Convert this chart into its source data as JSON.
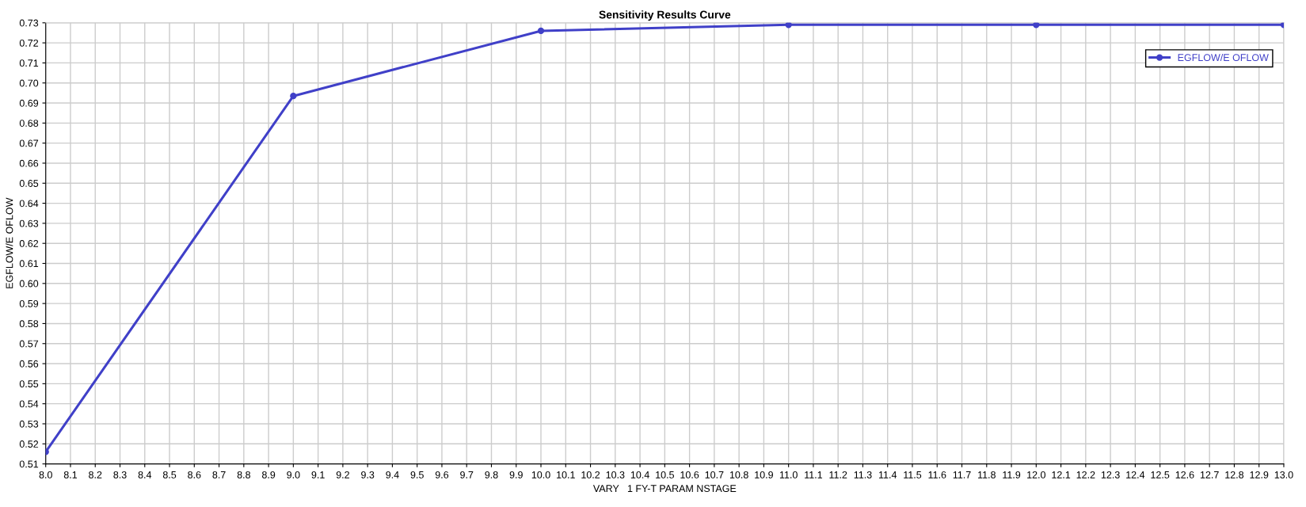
{
  "chart_data": {
    "type": "line",
    "title": "Sensitivity Results Curve",
    "xlabel": "VARY   1 FY-T PARAM NSTAGE",
    "ylabel": "EGFLOW/E OFLOW",
    "x": [
      8.0,
      9.0,
      10.0,
      11.0,
      12.0,
      13.0
    ],
    "series": [
      {
        "name": "EGFLOW/E OFLOW",
        "color": "#4040c8",
        "values": [
          0.516,
          0.6935,
          0.726,
          0.729,
          0.729,
          0.729
        ]
      }
    ],
    "xlim": [
      8.0,
      13.0
    ],
    "xticks": [
      {
        "value": 8,
        "label": "8.0"
      },
      8.1,
      8.2,
      8.3,
      8.4,
      8.5,
      8.6,
      8.7,
      8.8,
      8.9,
      {
        "value": 9,
        "label": "9.0"
      },
      9.1,
      9.2,
      9.3,
      9.4,
      9.5,
      9.6,
      9.7,
      9.8,
      9.9,
      {
        "value": 10,
        "label": "10.0"
      },
      10.1,
      10.2,
      10.3,
      10.4,
      10.5,
      10.6,
      10.7,
      10.8,
      10.9,
      {
        "value": 11,
        "label": "11.0"
      },
      11.1,
      11.2,
      11.3,
      11.4,
      11.5,
      11.6,
      11.7,
      11.8,
      11.9,
      {
        "value": 12,
        "label": "12.0"
      },
      12.1,
      12.2,
      12.3,
      12.4,
      12.5,
      12.6,
      12.7,
      12.8,
      12.9,
      {
        "value": 13,
        "label": "13.0"
      }
    ],
    "ylim": [
      0.51,
      0.73
    ],
    "yticks": [
      0.51,
      0.52,
      0.53,
      0.54,
      0.55,
      0.56,
      0.57,
      0.58,
      0.59,
      {
        "value": 0.6,
        "label": "0.60"
      },
      0.61,
      0.62,
      0.63,
      0.64,
      0.65,
      0.66,
      0.67,
      0.68,
      0.69,
      {
        "value": 0.7,
        "label": "0.70"
      },
      0.71,
      0.72,
      0.73
    ],
    "grid": true,
    "legend": "top right",
    "marker": "circle",
    "line_style": "solid"
  }
}
